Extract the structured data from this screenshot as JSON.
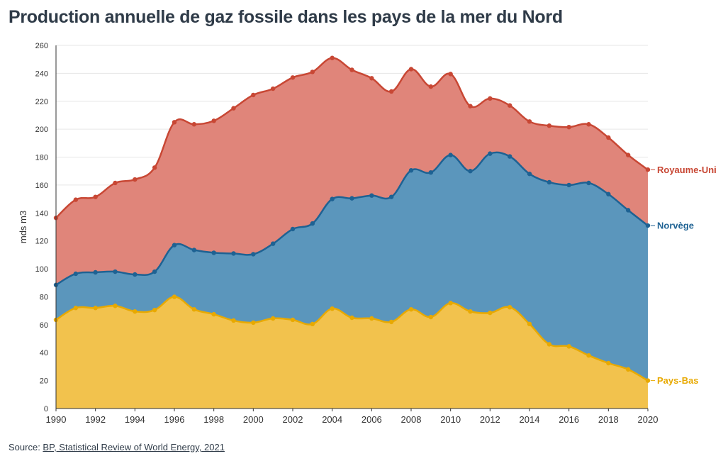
{
  "title": "Production annuelle de gaz fossile dans les pays de la mer du Nord",
  "source": {
    "prefix": "Source: ",
    "link_text": "BP, Statistical Review of World Energy, 2021"
  },
  "chart_data": {
    "type": "area",
    "stacked": true,
    "ylabel": "mds m3",
    "ylim": [
      0,
      260
    ],
    "yticks": [
      0,
      20,
      40,
      60,
      80,
      100,
      120,
      140,
      160,
      180,
      200,
      220,
      240,
      260
    ],
    "xlim": [
      1990,
      2020
    ],
    "xticks": [
      1990,
      1992,
      1994,
      1996,
      1998,
      2000,
      2002,
      2004,
      2006,
      2008,
      2010,
      2012,
      2014,
      2016,
      2018,
      2020
    ],
    "grid": true,
    "x": [
      1990,
      1991,
      1992,
      1993,
      1994,
      1995,
      1996,
      1997,
      1998,
      1999,
      2000,
      2001,
      2002,
      2003,
      2004,
      2005,
      2006,
      2007,
      2008,
      2009,
      2010,
      2011,
      2012,
      2013,
      2014,
      2015,
      2016,
      2017,
      2018,
      2019,
      2020
    ],
    "series": [
      {
        "name": "Pays-Bas",
        "color": "#e8a900",
        "fill": "#f2c24d",
        "values": [
          63.5,
          72,
          72,
          73.5,
          69.5,
          70.5,
          80,
          71,
          67.5,
          63,
          61.5,
          64.5,
          63.5,
          60.5,
          71.5,
          65,
          64.5,
          62,
          71,
          65.5,
          75.5,
          69.5,
          68.5,
          72.5,
          60.5,
          46,
          44.5,
          38,
          32.5,
          28,
          20
        ]
      },
      {
        "name": "Norvège",
        "color": "#1e6293",
        "fill": "#5b96bc",
        "cumulative": [
          88.5,
          96.5,
          97.5,
          98,
          96,
          98,
          117,
          113.5,
          111.5,
          111,
          110.5,
          118,
          128.5,
          132.5,
          150,
          150.5,
          152.5,
          151.5,
          170.5,
          169,
          181.5,
          170,
          182.5,
          180.5,
          168,
          162,
          160,
          161.5,
          153.5,
          142,
          131
        ]
      },
      {
        "name": "Royaume-Uni",
        "color": "#c84734",
        "fill": "#e0857a",
        "cumulative": [
          136.5,
          149.5,
          151.5,
          161.5,
          164,
          172.5,
          205,
          203.5,
          206,
          215,
          224.5,
          229,
          237,
          241,
          251,
          242.5,
          236.5,
          227,
          243,
          230.5,
          239.5,
          216.5,
          222,
          217,
          205.5,
          202.5,
          201.5,
          203.5,
          194,
          181.5,
          171
        ]
      }
    ]
  }
}
